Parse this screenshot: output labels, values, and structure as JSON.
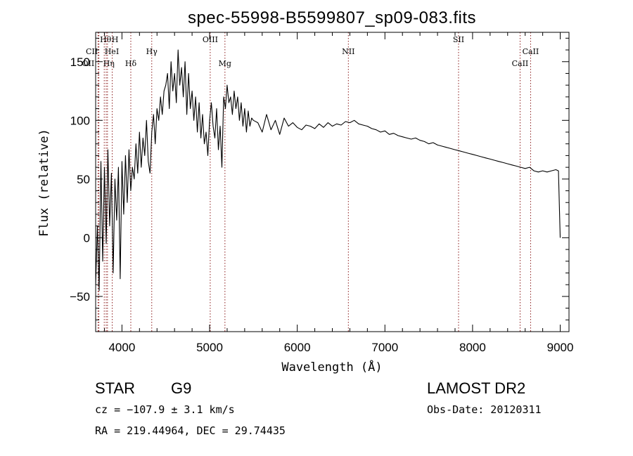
{
  "chart_data": {
    "type": "line",
    "title": "spec-55998-B5599807_sp09-083.fits",
    "xlabel": "Wavelength (Å)",
    "ylabel": "Flux (relative)",
    "xlim": [
      3700,
      9100
    ],
    "ylim": [
      -80,
      175
    ],
    "x_ticks": [
      4000,
      5000,
      6000,
      7000,
      8000,
      9000
    ],
    "y_ticks": [
      -50,
      0,
      50,
      100,
      150
    ],
    "grid": false,
    "line_color": "#000000",
    "marker_color": "#8b1a1a",
    "series": [
      {
        "x": [
          3700,
          3720,
          3740,
          3760,
          3780,
          3800,
          3820,
          3840,
          3860,
          3880,
          3900,
          3920,
          3940,
          3960,
          3980,
          4000,
          4020,
          4040,
          4060,
          4080,
          4100,
          4120,
          4140,
          4160,
          4180,
          4200,
          4220,
          4240,
          4260,
          4280,
          4300,
          4320,
          4340,
          4360,
          4380,
          4400,
          4420,
          4440,
          4460,
          4480,
          4500,
          4520,
          4540,
          4560,
          4580,
          4600,
          4620,
          4640,
          4660,
          4680,
          4700,
          4720,
          4740,
          4760,
          4780,
          4800,
          4820,
          4840,
          4860,
          4880,
          4900,
          4920,
          4940,
          4960,
          4980,
          5000,
          5020,
          5040,
          5060,
          5080,
          5100,
          5120,
          5140,
          5160,
          5180,
          5200,
          5220,
          5240,
          5260,
          5280,
          5300,
          5320,
          5340,
          5360,
          5380,
          5400,
          5420,
          5440,
          5460,
          5480,
          5500,
          5550,
          5600,
          5650,
          5700,
          5750,
          5800,
          5850,
          5900,
          5950,
          6000,
          6050,
          6100,
          6150,
          6200,
          6250,
          6300,
          6350,
          6400,
          6450,
          6500,
          6550,
          6600,
          6650,
          6700,
          6750,
          6800,
          6850,
          6900,
          6950,
          7000,
          7050,
          7100,
          7150,
          7200,
          7250,
          7300,
          7350,
          7400,
          7450,
          7500,
          7550,
          7600,
          7650,
          7700,
          7750,
          7800,
          7850,
          7900,
          7950,
          8000,
          8050,
          8100,
          8150,
          8200,
          8250,
          8300,
          8350,
          8400,
          8450,
          8500,
          8550,
          8600,
          8650,
          8700,
          8750,
          8800,
          8850,
          8900,
          8950,
          8980,
          9000
        ],
        "values": [
          -40,
          10,
          -45,
          65,
          -20,
          60,
          -5,
          75,
          10,
          55,
          -30,
          50,
          15,
          60,
          -35,
          65,
          20,
          70,
          30,
          75,
          40,
          60,
          50,
          80,
          55,
          90,
          60,
          85,
          70,
          100,
          65,
          55,
          90,
          105,
          80,
          110,
          100,
          120,
          105,
          125,
          130,
          140,
          110,
          150,
          125,
          140,
          115,
          160,
          130,
          145,
          120,
          150,
          105,
          140,
          110,
          125,
          100,
          120,
          90,
          115,
          85,
          105,
          80,
          90,
          70,
          100,
          115,
          95,
          85,
          110,
          75,
          95,
          60,
          120,
          110,
          130,
          115,
          120,
          105,
          125,
          110,
          120,
          100,
          115,
          95,
          110,
          90,
          108,
          95,
          102,
          100,
          98,
          90,
          105,
          92,
          100,
          88,
          102,
          95,
          98,
          94,
          92,
          96,
          95,
          93,
          97,
          94,
          98,
          95,
          97,
          96,
          99,
          98,
          100,
          97,
          96,
          95,
          93,
          92,
          90,
          91,
          88,
          89,
          87,
          86,
          85,
          84,
          85,
          83,
          82,
          80,
          81,
          79,
          78,
          77,
          76,
          75,
          74,
          73,
          72,
          71,
          70,
          69,
          68,
          67,
          66,
          65,
          64,
          63,
          62,
          61,
          60,
          59,
          60,
          57,
          56,
          57,
          56,
          57,
          58,
          57,
          0
        ]
      }
    ],
    "lines": [
      {
        "label": "Hθ",
        "x": 3798,
        "row": 0,
        "dx": 2
      },
      {
        "label": "H",
        "x": 3889,
        "row": 0,
        "dx": 4
      },
      {
        "label": "CII",
        "x": 3737,
        "row": 1,
        "dx": -10
      },
      {
        "label": "HeI",
        "x": 3820,
        "row": 1,
        "dx": 8
      },
      {
        "label": "OII",
        "x": 3727,
        "row": 2,
        "dx": -14
      },
      {
        "label": "Hη",
        "x": 3835,
        "row": 2,
        "dx": 2
      },
      {
        "label": "Hδ",
        "x": 4101,
        "row": 2,
        "dx": 0
      },
      {
        "label": "Hγ",
        "x": 4340,
        "row": 1,
        "dx": 0
      },
      {
        "label": "OIII",
        "x": 5007,
        "row": 0,
        "dx": 0
      },
      {
        "label": "Mg",
        "x": 5175,
        "row": 2,
        "dx": 0
      },
      {
        "label": "NII",
        "x": 6583,
        "row": 1,
        "dx": 0
      },
      {
        "label": "SII",
        "x": 7840,
        "row": 0,
        "dx": 0
      },
      {
        "label": "CaII",
        "x": 8542,
        "row": 2,
        "dx": 0
      },
      {
        "label": "CaII",
        "x": 8662,
        "row": 1,
        "dx": 0
      }
    ]
  },
  "footer": {
    "object_class": "STAR",
    "subclass": "G9",
    "survey": "LAMOST DR2",
    "cz": "cz = −107.9 ± 3.1 km/s",
    "obs_date": "Obs-Date: 20120311",
    "coords": "RA = 219.44964, DEC =  29.74435"
  }
}
